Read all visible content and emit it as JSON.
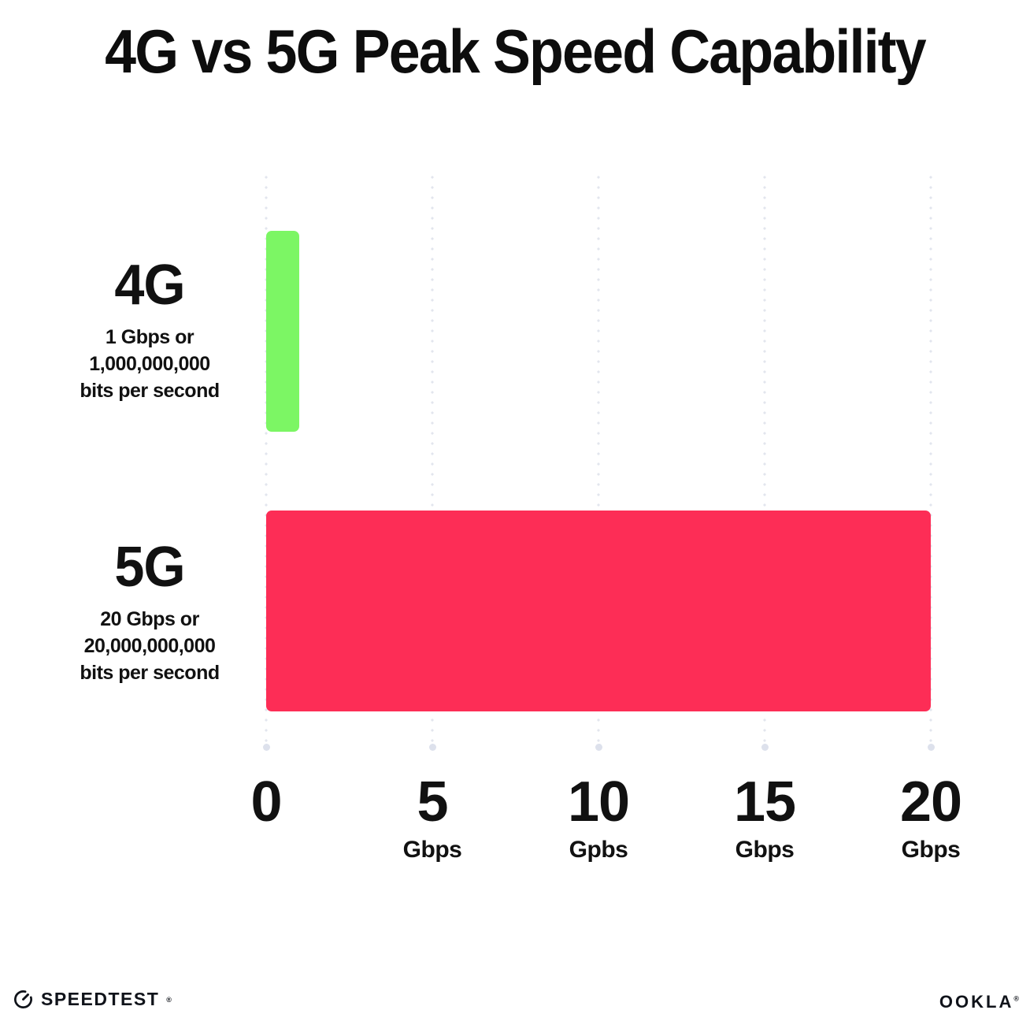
{
  "page": {
    "background": "#ffffff",
    "text_color": "#111111"
  },
  "chart_data": {
    "type": "bar",
    "orientation": "horizontal",
    "title": "4G vs 5G Peak Speed Capability",
    "categories": [
      "4G",
      "5G"
    ],
    "values": [
      1,
      20
    ],
    "value_unit": "Gbps",
    "xlim": [
      0,
      20
    ],
    "grid": "vertical dotted gridlines at each tick, larger dot at axis end",
    "legend": "none",
    "gridline_color": "#e2e5ee",
    "axis_dot_color": "#dde1ec",
    "bars": [
      {
        "label": "4G",
        "value": 1,
        "color": "#7cf664",
        "sublines": [
          "1 Gbps or",
          "1,000,000,000",
          "bits per second"
        ]
      },
      {
        "label": "5G",
        "value": 20,
        "color": "#fd2d56",
        "sublines": [
          "20 Gbps or",
          "20,000,000,000",
          "bits per second"
        ]
      }
    ],
    "x_ticks": [
      {
        "value": 0,
        "label": "0",
        "unit": ""
      },
      {
        "value": 5,
        "label": "5",
        "unit": "Gbps"
      },
      {
        "value": 10,
        "label": "10",
        "unit": "Gpbs"
      },
      {
        "value": 15,
        "label": "15",
        "unit": "Gbps"
      },
      {
        "value": 20,
        "label": "20",
        "unit": "Gbps"
      }
    ]
  },
  "footer": {
    "speedtest_label": "SPEEDTEST",
    "ookla_label": "OOKLA",
    "trademark_symbol": "®"
  }
}
